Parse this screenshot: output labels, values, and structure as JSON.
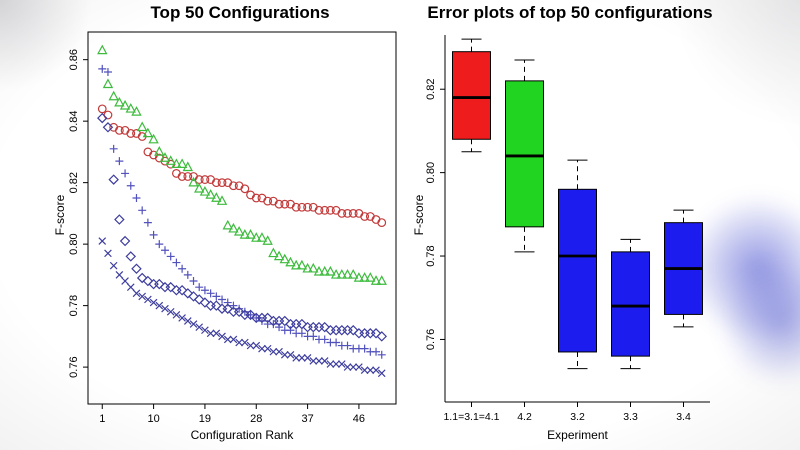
{
  "background": {
    "artifact_blob_color": "#2630c6",
    "page_background": "#ffffff"
  },
  "chart_data": [
    {
      "type": "scatter",
      "title": "Top 50 Configurations",
      "xlabel": "Configuration Rank",
      "ylabel": "F-score",
      "xlim": [
        -1.5,
        52.5
      ],
      "ylim": [
        0.748,
        0.869
      ],
      "xticks": [
        1,
        10,
        19,
        28,
        37,
        46
      ],
      "yticks": [
        0.76,
        0.78,
        0.8,
        0.82,
        0.84,
        0.86
      ],
      "grid": false,
      "frame": true,
      "x_is_rank": "ranks 1 to 50 for every series",
      "series": [
        {
          "name": "circles",
          "marker": "circle",
          "color": "#c23a3a",
          "values": [
            0.844,
            0.842,
            0.838,
            0.837,
            0.837,
            0.836,
            0.836,
            0.835,
            0.83,
            0.829,
            0.828,
            0.827,
            0.826,
            0.823,
            0.822,
            0.822,
            0.822,
            0.821,
            0.821,
            0.821,
            0.82,
            0.82,
            0.82,
            0.819,
            0.819,
            0.818,
            0.816,
            0.815,
            0.815,
            0.814,
            0.814,
            0.813,
            0.813,
            0.813,
            0.812,
            0.812,
            0.812,
            0.812,
            0.811,
            0.811,
            0.811,
            0.811,
            0.81,
            0.81,
            0.81,
            0.81,
            0.809,
            0.809,
            0.808,
            0.807
          ]
        },
        {
          "name": "triangles",
          "marker": "triangle",
          "color": "#3dbb3d",
          "values": [
            0.863,
            0.852,
            0.848,
            0.846,
            0.845,
            0.844,
            0.843,
            0.838,
            0.836,
            0.834,
            0.83,
            0.828,
            0.827,
            0.826,
            0.826,
            0.825,
            0.82,
            0.818,
            0.817,
            0.816,
            0.815,
            0.814,
            0.806,
            0.805,
            0.804,
            0.803,
            0.803,
            0.802,
            0.802,
            0.801,
            0.797,
            0.796,
            0.795,
            0.794,
            0.793,
            0.793,
            0.792,
            0.792,
            0.791,
            0.791,
            0.791,
            0.79,
            0.79,
            0.79,
            0.79,
            0.789,
            0.789,
            0.789,
            0.788,
            0.788
          ]
        },
        {
          "name": "plus-marks",
          "marker": "plus",
          "color": "#5252bd",
          "values": [
            0.857,
            0.856,
            0.831,
            0.827,
            0.823,
            0.819,
            0.815,
            0.811,
            0.807,
            0.803,
            0.8,
            0.798,
            0.796,
            0.794,
            0.792,
            0.79,
            0.788,
            0.786,
            0.785,
            0.784,
            0.783,
            0.782,
            0.781,
            0.78,
            0.779,
            0.778,
            0.777,
            0.776,
            0.775,
            0.774,
            0.774,
            0.773,
            0.772,
            0.772,
            0.771,
            0.771,
            0.77,
            0.77,
            0.769,
            0.769,
            0.768,
            0.768,
            0.767,
            0.767,
            0.766,
            0.766,
            0.766,
            0.765,
            0.765,
            0.764
          ]
        },
        {
          "name": "diamonds",
          "marker": "diamond",
          "color": "#3e3e9e",
          "values": [
            0.841,
            0.838,
            0.821,
            0.808,
            0.801,
            0.796,
            0.792,
            0.789,
            0.788,
            0.787,
            0.787,
            0.786,
            0.786,
            0.785,
            0.785,
            0.784,
            0.783,
            0.782,
            0.781,
            0.78,
            0.78,
            0.779,
            0.779,
            0.778,
            0.778,
            0.777,
            0.777,
            0.776,
            0.776,
            0.776,
            0.775,
            0.775,
            0.775,
            0.774,
            0.774,
            0.774,
            0.773,
            0.773,
            0.773,
            0.773,
            0.772,
            0.772,
            0.772,
            0.772,
            0.772,
            0.771,
            0.771,
            0.771,
            0.771,
            0.77
          ]
        },
        {
          "name": "x-marks",
          "marker": "x",
          "color": "#3e3e9e",
          "values": [
            0.801,
            0.797,
            0.793,
            0.79,
            0.788,
            0.786,
            0.784,
            0.783,
            0.782,
            0.781,
            0.78,
            0.779,
            0.778,
            0.777,
            0.776,
            0.775,
            0.774,
            0.773,
            0.772,
            0.771,
            0.771,
            0.77,
            0.769,
            0.769,
            0.768,
            0.768,
            0.767,
            0.767,
            0.766,
            0.766,
            0.765,
            0.765,
            0.764,
            0.764,
            0.763,
            0.763,
            0.763,
            0.762,
            0.762,
            0.762,
            0.761,
            0.761,
            0.761,
            0.76,
            0.76,
            0.76,
            0.759,
            0.759,
            0.759,
            0.758
          ]
        }
      ]
    },
    {
      "type": "boxplot",
      "title": "Error plots of top 50 configurations",
      "xlabel": "Experiment",
      "ylabel": "F-score",
      "ylim": [
        0.745,
        0.833
      ],
      "yticks": [
        0.76,
        0.78,
        0.8,
        0.82
      ],
      "grid": false,
      "frame": false,
      "boxes": [
        {
          "label": "1.1=3.1=4.1",
          "color": "#ee1c1c",
          "min": 0.805,
          "q1": 0.808,
          "median": 0.818,
          "q3": 0.829,
          "max": 0.832
        },
        {
          "label": "4.2",
          "color": "#22d422",
          "min": 0.781,
          "q1": 0.787,
          "median": 0.804,
          "q3": 0.822,
          "max": 0.827
        },
        {
          "label": "3.2",
          "color": "#1c1cee",
          "min": 0.753,
          "q1": 0.757,
          "median": 0.78,
          "q3": 0.796,
          "max": 0.803
        },
        {
          "label": "3.3",
          "color": "#1c1cee",
          "min": 0.753,
          "q1": 0.756,
          "median": 0.768,
          "q3": 0.781,
          "max": 0.784
        },
        {
          "label": "3.4",
          "color": "#1c1cee",
          "min": 0.763,
          "q1": 0.766,
          "median": 0.777,
          "q3": 0.788,
          "max": 0.791
        }
      ]
    }
  ]
}
